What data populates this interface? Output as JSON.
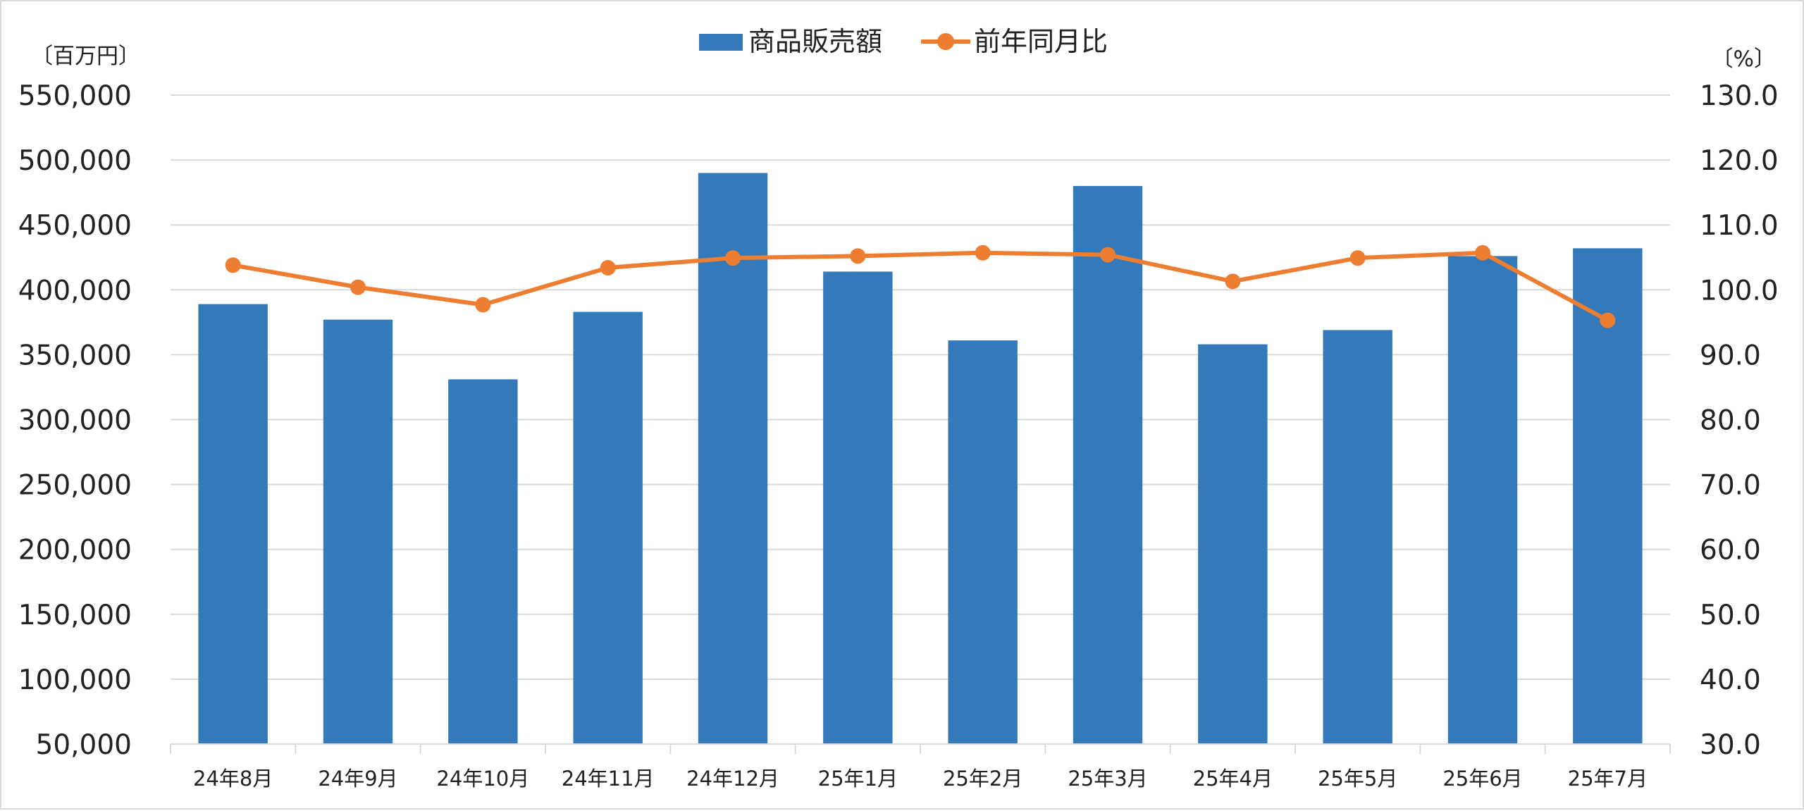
{
  "chart_data": {
    "type": "bar",
    "categories": [
      "24年8月",
      "24年9月",
      "24年10月",
      "24年11月",
      "24年12月",
      "25年1月",
      "25年2月",
      "25年3月",
      "25年4月",
      "25年5月",
      "25年6月",
      "25年7月"
    ],
    "series": [
      {
        "name": "商品販売額",
        "type": "bar",
        "axis": "left",
        "color": "#3479b9",
        "values": [
          389000,
          377000,
          331000,
          383000,
          490000,
          414000,
          361000,
          480000,
          358000,
          369000,
          426000,
          432000
        ]
      },
      {
        "name": "前年同月比",
        "type": "line",
        "axis": "right",
        "color": "#ed7d31",
        "values": [
          103.8,
          100.4,
          97.7,
          103.4,
          104.9,
          105.2,
          105.7,
          105.4,
          101.3,
          104.9,
          105.7,
          95.3
        ]
      }
    ],
    "y_left": {
      "unit": "〔百万円〕",
      "ylim": [
        50000,
        550000
      ],
      "ticks": [
        "50,000",
        "100,000",
        "150,000",
        "200,000",
        "250,000",
        "300,000",
        "350,000",
        "400,000",
        "450,000",
        "500,000",
        "550,000"
      ],
      "tick_values": [
        50000,
        100000,
        150000,
        200000,
        250000,
        300000,
        350000,
        400000,
        450000,
        500000,
        550000
      ]
    },
    "y_right": {
      "unit": "〔%〕",
      "ylim": [
        30,
        130
      ],
      "ticks": [
        "30.0",
        "40.0",
        "50.0",
        "60.0",
        "70.0",
        "80.0",
        "90.0",
        "100.0",
        "110.0",
        "120.0",
        "130.0"
      ],
      "tick_values": [
        30,
        40,
        50,
        60,
        70,
        80,
        90,
        100,
        110,
        120,
        130
      ]
    },
    "legend": {
      "placement": "top-center"
    },
    "grid": true,
    "grid_color": "#d9d9d9"
  }
}
